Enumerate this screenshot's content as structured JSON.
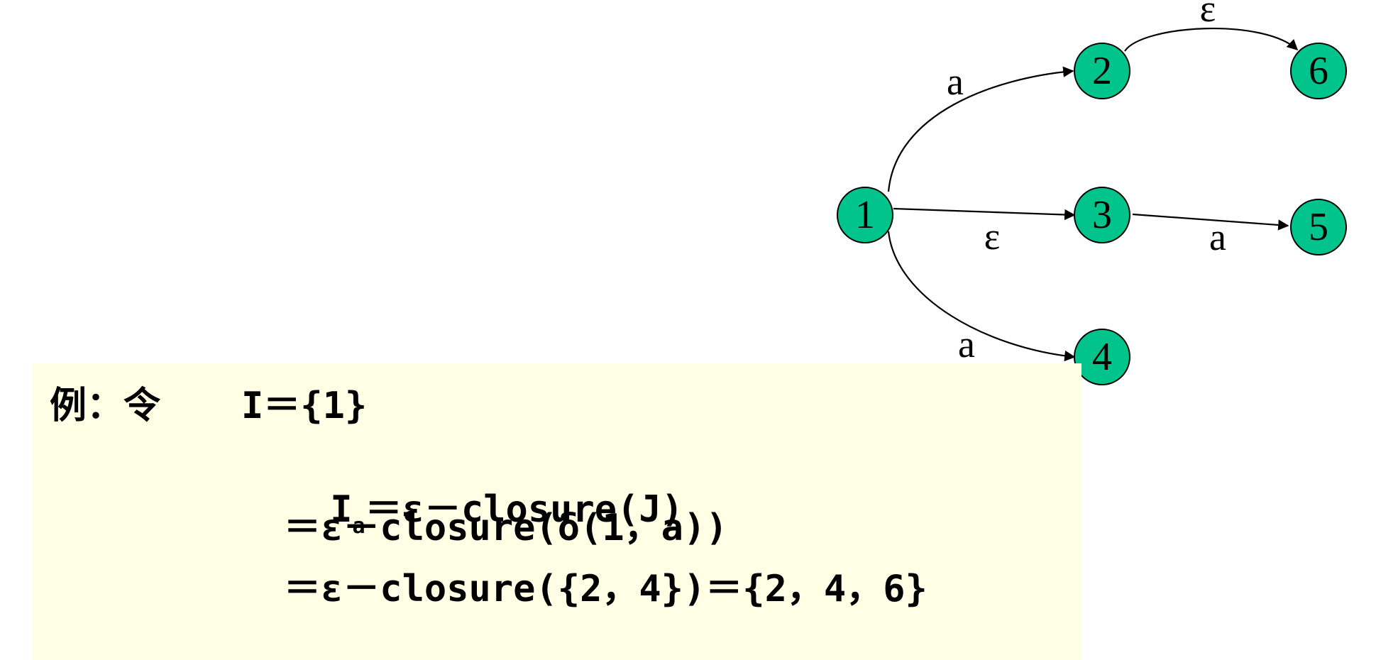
{
  "diagram": {
    "nodes": [
      {
        "id": "1",
        "label": "1"
      },
      {
        "id": "2",
        "label": "2"
      },
      {
        "id": "3",
        "label": "3"
      },
      {
        "id": "4",
        "label": "4"
      },
      {
        "id": "5",
        "label": "5"
      },
      {
        "id": "6",
        "label": "6"
      }
    ],
    "edges": [
      {
        "from": "1",
        "to": "2",
        "label": "a"
      },
      {
        "from": "1",
        "to": "3",
        "label": "ε"
      },
      {
        "from": "1",
        "to": "4",
        "label": "a"
      },
      {
        "from": "2",
        "to": "6",
        "label": "ε"
      },
      {
        "from": "3",
        "to": "5",
        "label": "a"
      }
    ],
    "node_color": "#00c48c"
  },
  "formula": {
    "prefix": "例：令",
    "line1": "I＝{1}",
    "line2_main": "I",
    "line2_sub": "a",
    "line2_rest": "＝ε－closure(J)",
    "line3": "＝ε－closure(δ(1，a))",
    "line4": "＝ε－closure({2，4})＝{2，4，6}",
    "background": "#ffffe6"
  }
}
